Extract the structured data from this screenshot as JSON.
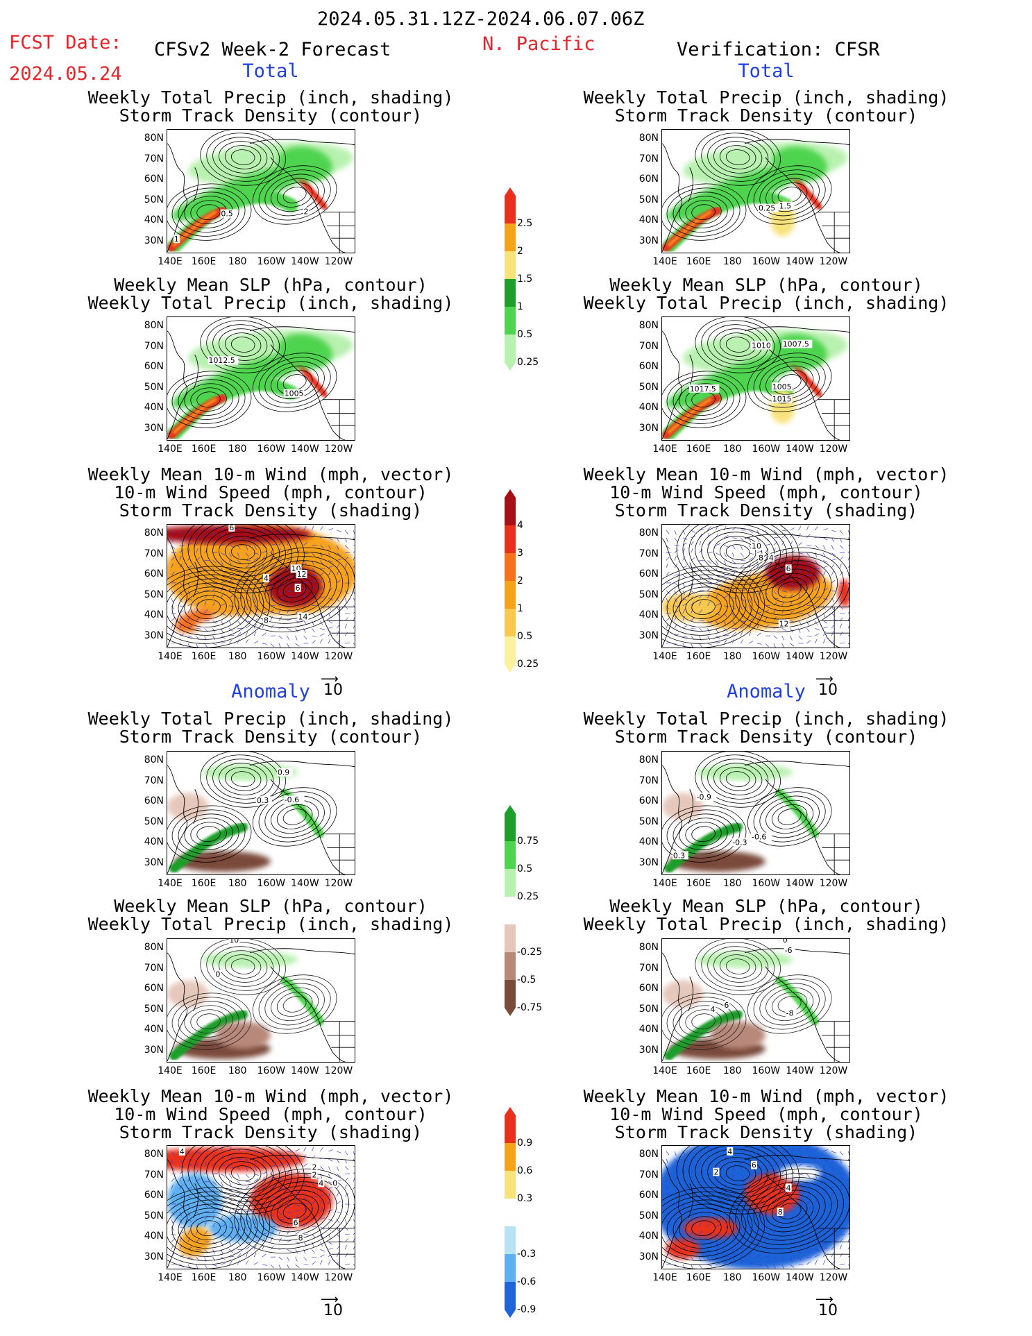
{
  "header": {
    "date_range": "2024.05.31.12Z-2024.06.07.06Z",
    "fcst_label": "FCST Date:",
    "fcst_date": "2024.05.24",
    "left_title": "CFSv2 Week-2 Forecast",
    "region": "N. Pacific",
    "right_title": "Verification: CFSR"
  },
  "sections": {
    "total": "Total",
    "anomaly": "Anomaly"
  },
  "panel_titles": {
    "precip_storm": [
      "Weekly Total Precip (inch, shading)",
      "Storm Track Density (contour)"
    ],
    "slp_precip": [
      "Weekly Mean SLP (hPa, contour)",
      "Weekly Total Precip (inch, shading)"
    ],
    "wind_storm": [
      "Weekly Mean 10-m Wind (mph, vector)",
      "10-m Wind Speed (mph, contour)",
      "Storm Track Density (shading)"
    ]
  },
  "axes": {
    "lat_ticks": [
      "80N",
      "70N",
      "60N",
      "50N",
      "40N",
      "30N"
    ],
    "lon_ticks": [
      "140E",
      "160E",
      "180",
      "160W",
      "140W",
      "120W"
    ]
  },
  "vector_ref": "10",
  "colorbars": {
    "precip_total": {
      "labels": [
        "2.5",
        "2",
        "1.5",
        "1",
        "0.5",
        "0.25"
      ],
      "colors": [
        "#e8301c",
        "#f6a21a",
        "#f8e27a",
        "#1e9e2a",
        "#4fd44f",
        "#b9f1b0"
      ]
    },
    "storm_total": {
      "labels": [
        "4",
        "3",
        "2",
        "1",
        "0.5",
        "0.25"
      ],
      "colors": [
        "#a50f15",
        "#e8301c",
        "#f7701a",
        "#f6a21a",
        "#f8c850",
        "#fbf2a0"
      ]
    },
    "precip_anom": {
      "labels": [
        "0.75",
        "0.5",
        "0.25",
        "-0.25",
        "-0.5",
        "-0.75"
      ],
      "colors": [
        "#1e9e2a",
        "#4fd44f",
        "#b9f1b0",
        "#ffffff",
        "#e6c8bb",
        "#b8897a",
        "#7a4a3a"
      ]
    },
    "storm_anom": {
      "labels": [
        "0.9",
        "0.6",
        "0.3",
        "-0.3",
        "-0.6",
        "-0.9"
      ],
      "colors": [
        "#e8301c",
        "#f6a21a",
        "#f8e27a",
        "#ffffff",
        "#b7e4f5",
        "#5fb0f0",
        "#1f64d8"
      ]
    }
  },
  "contour_labels": {
    "f_total_precip": [
      "0.5",
      "2",
      "1"
    ],
    "v_total_precip": [
      "0.25",
      "1.5"
    ],
    "f_total_slp": [
      "1012.5",
      "1005"
    ],
    "v_total_slp": [
      "1010",
      "1007.5",
      "1017.5",
      "1005",
      "1015"
    ],
    "f_total_wind": [
      "6",
      "10",
      "12",
      "4",
      "6",
      "14",
      "8"
    ],
    "v_total_wind": [
      "10",
      "8",
      "4",
      "6",
      "12"
    ],
    "f_anom_precip": [
      "0.9",
      "0.3",
      "-0.6"
    ],
    "v_anom_precip": [
      "-0.9",
      "-0.3",
      "-0.6",
      "0.3"
    ],
    "f_anom_slp": [
      "10",
      "0"
    ],
    "v_anom_slp": [
      "0",
      "-6",
      "6",
      "4",
      "-8"
    ],
    "f_anom_wind": [
      "4",
      "2",
      "4",
      "0",
      "2",
      "6",
      "8"
    ],
    "v_anom_wind": [
      "4",
      "2",
      "6",
      "4",
      "8"
    ]
  }
}
